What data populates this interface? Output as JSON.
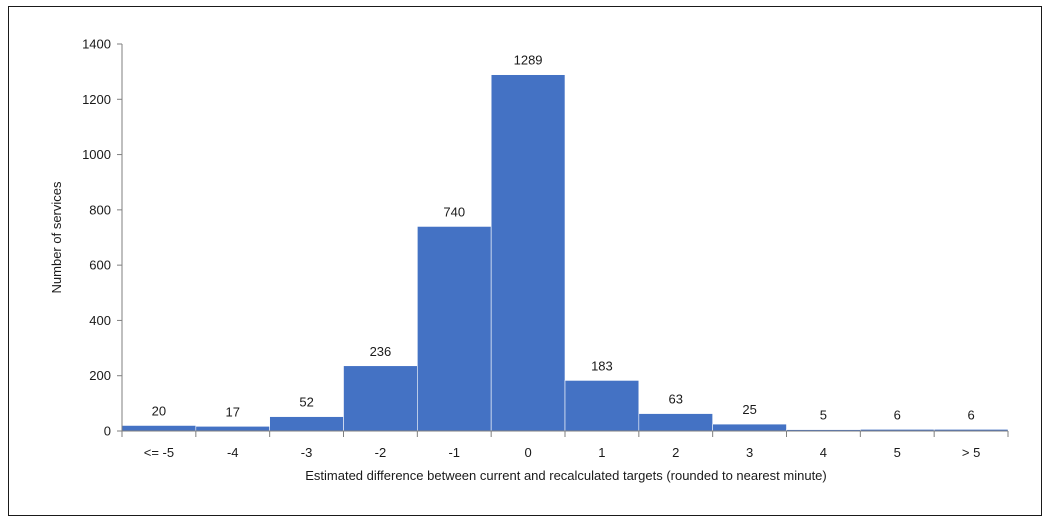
{
  "chart_data": {
    "type": "bar",
    "title": "",
    "xlabel": "Estimated difference between current and recalculated targets (rounded to nearest minute)",
    "ylabel": "Number of services",
    "categories": [
      "<= -5",
      "-4",
      "-3",
      "-2",
      "-1",
      "0",
      "1",
      "2",
      "3",
      "4",
      "5",
      "> 5"
    ],
    "values": [
      20,
      17,
      52,
      236,
      740,
      1289,
      183,
      63,
      25,
      5,
      6,
      6
    ],
    "ylim": [
      0,
      1400
    ],
    "yticks": [
      0,
      200,
      400,
      600,
      800,
      1000,
      1200,
      1400
    ],
    "y_tick_labels": [
      "0",
      "200",
      "400",
      "600",
      "800",
      "1000",
      "1200",
      "1400"
    ],
    "bar_color": "#4472C4",
    "grid": false,
    "legend": "none",
    "data_labels": true
  }
}
